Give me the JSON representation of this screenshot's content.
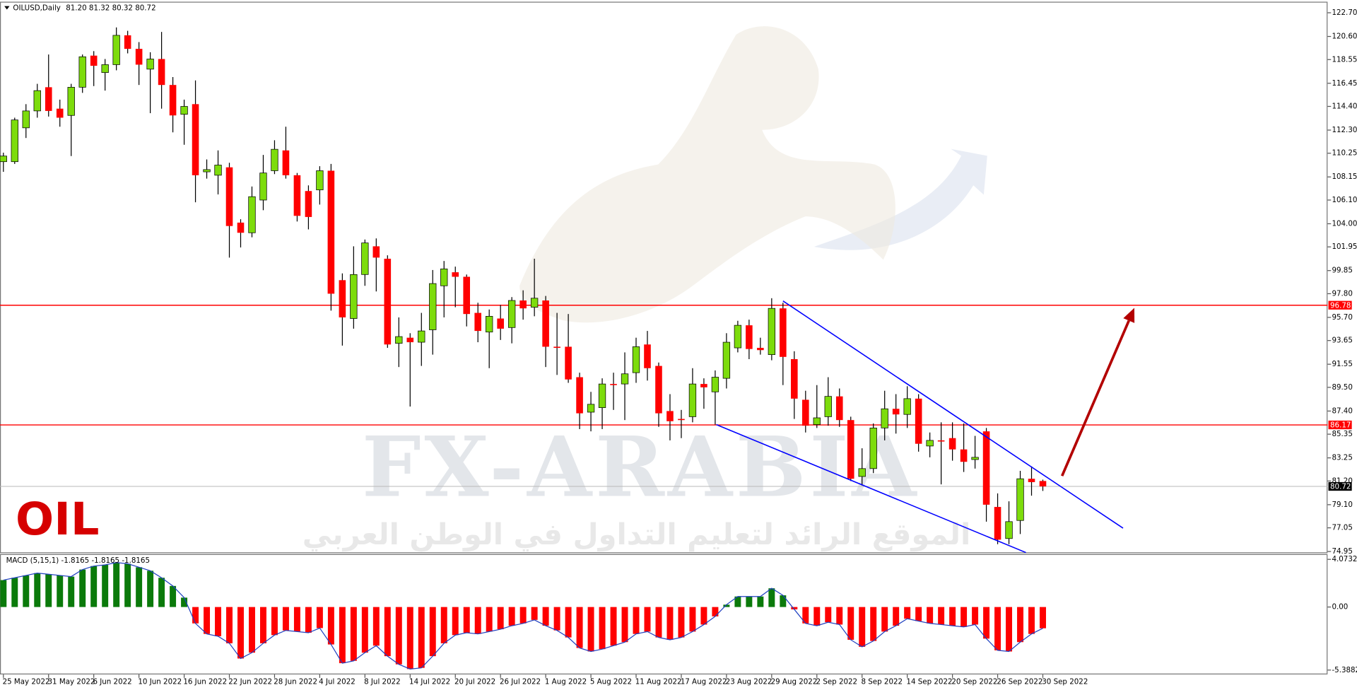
{
  "chart_data": [
    {
      "type": "candlestick",
      "title": "OILUSD,Daily",
      "ohlc_label": "81.20 81.32 80.32 80.72",
      "symbol_label": "OIL",
      "watermark": {
        "title": "FX-ARABIA",
        "subtitle": "الموقع الرائد لتعليم التداول في الوطن العربي"
      },
      "categories": [
        "25 May 2022",
        null,
        null,
        null,
        "31 May 2022",
        null,
        null,
        null,
        "6 Jun 2022",
        null,
        null,
        null,
        "10 Jun 2022",
        null,
        null,
        null,
        "16 Jun 2022",
        null,
        null,
        null,
        "22 Jun 2022",
        null,
        null,
        null,
        "28 Jun 2022",
        null,
        null,
        null,
        "4 Jul 2022",
        null,
        null,
        null,
        "8 Jul 2022",
        null,
        null,
        null,
        "14 Jul 2022",
        null,
        null,
        null,
        "20 Jul 2022",
        null,
        null,
        null,
        "26 Jul 2022",
        null,
        null,
        null,
        "1 Aug 2022",
        null,
        null,
        null,
        "5 Aug 2022",
        null,
        null,
        null,
        "11 Aug 2022",
        null,
        null,
        null,
        "17 Aug 2022",
        null,
        null,
        null,
        "23 Aug 2022",
        null,
        null,
        null,
        "29 Aug 2022",
        null,
        null,
        null,
        "2 Sep 2022",
        null,
        null,
        null,
        "8 Sep 2022",
        null,
        null,
        null,
        "14 Sep 2022",
        null,
        null,
        null,
        "20 Sep 2022",
        null,
        null,
        null,
        "26 Sep 2022",
        null,
        null,
        null,
        "30 Sep 2022"
      ],
      "open": [
        109.5,
        109.5,
        112.5,
        114.0,
        116.1,
        114.2,
        113.6,
        116.1,
        118.9,
        117.4,
        118.1,
        120.7,
        119.5,
        117.7,
        118.6,
        116.3,
        113.7,
        114.6,
        108.6,
        108.3,
        109.0,
        104.1,
        103.2,
        106.1,
        108.7,
        110.5,
        108.3,
        106.9,
        107.0,
        108.7,
        99.0,
        95.6,
        99.5,
        102.0,
        100.9,
        93.4,
        93.9,
        93.5,
        94.6,
        98.5,
        99.7,
        99.3,
        96.1,
        94.4,
        95.6,
        94.8,
        97.2,
        96.6,
        97.2,
        93.1,
        93.1,
        90.4,
        87.3,
        87.7,
        89.8,
        89.8,
        90.8,
        93.3,
        91.4,
        87.4,
        86.7,
        86.9,
        89.8,
        89.1,
        90.3,
        93.0,
        95.0,
        93.0,
        92.4,
        96.5,
        92.0,
        88.4,
        86.2,
        86.9,
        88.7,
        86.6,
        81.6,
        82.3,
        85.9,
        87.6,
        87.1,
        88.5,
        84.3,
        84.8,
        85.0,
        84.0,
        83.1,
        85.6,
        78.9,
        76.1,
        77.7,
        81.4,
        81.2
      ],
      "high": [
        110.3,
        113.4,
        114.6,
        116.4,
        119.0,
        115.0,
        116.4,
        119.0,
        119.3,
        118.6,
        121.4,
        121.1,
        120.1,
        119.2,
        121.0,
        117.0,
        115.0,
        116.7,
        109.7,
        110.5,
        109.4,
        104.4,
        107.3,
        110.1,
        111.4,
        112.6,
        108.5,
        107.4,
        109.1,
        109.3,
        99.6,
        102.0,
        102.6,
        102.7,
        101.2,
        95.7,
        94.3,
        96.1,
        99.9,
        100.7,
        100.2,
        99.5,
        97.0,
        96.4,
        96.8,
        97.5,
        98.1,
        100.9,
        97.6,
        96.1,
        96.0,
        90.8,
        89.1,
        90.3,
        90.8,
        92.6,
        93.9,
        94.5,
        91.7,
        88.9,
        87.5,
        91.2,
        90.3,
        91.0,
        94.3,
        95.4,
        95.5,
        93.9,
        97.4,
        97.0,
        92.7,
        89.2,
        89.7,
        90.4,
        89.4,
        86.9,
        84.1,
        86.3,
        89.2,
        88.9,
        89.6,
        88.9,
        85.5,
        86.4,
        86.4,
        86.3,
        85.2,
        85.9,
        80.1,
        79.4,
        82.1,
        82.5,
        81.32
      ],
      "low": [
        108.6,
        109.3,
        111.6,
        113.4,
        113.5,
        112.6,
        110.0,
        115.6,
        116.2,
        115.8,
        117.6,
        119.1,
        116.3,
        113.8,
        114.2,
        112.1,
        111.0,
        105.9,
        108.0,
        106.6,
        101.0,
        101.9,
        102.8,
        105.2,
        108.4,
        108.0,
        104.2,
        103.5,
        105.7,
        96.3,
        93.2,
        94.7,
        98.5,
        98.0,
        93.0,
        91.3,
        87.8,
        91.4,
        92.4,
        95.7,
        96.6,
        94.9,
        93.5,
        91.2,
        93.7,
        93.4,
        95.5,
        95.8,
        91.3,
        90.6,
        89.9,
        85.8,
        85.6,
        85.8,
        87.5,
        86.6,
        89.9,
        90.1,
        86.0,
        84.8,
        85.0,
        86.4,
        87.6,
        86.2,
        89.4,
        92.6,
        92.0,
        92.4,
        91.9,
        89.7,
        86.7,
        85.5,
        85.9,
        86.1,
        86.0,
        81.2,
        80.8,
        81.9,
        84.8,
        85.4,
        85.9,
        83.8,
        83.3,
        80.9,
        83.0,
        82.0,
        82.3,
        77.6,
        75.6,
        75.6,
        76.5,
        79.9,
        80.32
      ],
      "close": [
        110.0,
        113.2,
        114.0,
        115.8,
        114.0,
        113.4,
        116.1,
        118.8,
        118.0,
        118.1,
        120.7,
        119.5,
        118.1,
        118.6,
        116.3,
        113.6,
        114.4,
        108.3,
        108.8,
        109.2,
        103.8,
        103.2,
        106.4,
        108.5,
        110.6,
        108.3,
        104.7,
        104.6,
        108.7,
        97.8,
        95.7,
        99.5,
        102.3,
        101.0,
        93.3,
        94.0,
        93.5,
        94.5,
        98.7,
        100.0,
        99.3,
        96.0,
        94.5,
        95.8,
        94.7,
        97.2,
        96.5,
        97.4,
        93.1,
        93.0,
        90.2,
        87.2,
        88.0,
        89.8,
        89.7,
        90.7,
        93.1,
        91.2,
        87.2,
        86.5,
        86.6,
        89.8,
        89.5,
        90.4,
        93.5,
        95.0,
        92.9,
        92.8,
        96.5,
        92.2,
        88.5,
        86.1,
        86.8,
        88.7,
        86.6,
        81.4,
        82.3,
        85.9,
        87.6,
        87.1,
        88.5,
        84.5,
        84.8,
        84.7,
        84.0,
        82.9,
        83.3,
        79.1,
        76.0,
        77.6,
        81.4,
        81.1,
        80.72
      ],
      "up_color": "#7ddc0c",
      "down_color": "#ff0000",
      "xlim": [
        -0.3,
        117.2
      ],
      "ylim": [
        74.8,
        123.6
      ],
      "yticks": [
        {
          "value": 122.7,
          "label": "122.70"
        },
        {
          "value": 120.6,
          "label": "120.60"
        },
        118.55,
        116.45,
        {
          "value": 114.4,
          "label": "114.40"
        },
        {
          "value": 112.3,
          "label": "112.30"
        },
        110.25,
        108.15,
        {
          "value": 106.1,
          "label": "106.10"
        },
        {
          "value": 104,
          "label": "104.00"
        },
        101.95,
        99.85,
        {
          "value": 97.8,
          "label": "97.80"
        },
        {
          "value": 95.7,
          "label": "95.70"
        },
        93.65,
        91.55,
        {
          "value": 89.5,
          "label": "89.50"
        },
        {
          "value": 87.4,
          "label": "87.40"
        },
        85.35,
        83.25,
        {
          "value": 81.2,
          "label": "81.20"
        },
        {
          "value": 79.1,
          "label": "79.10"
        },
        77.05,
        74.95
      ],
      "hlines": [
        {
          "value": 96.78,
          "label": "96.78",
          "color": "#ff0000"
        },
        {
          "value": 86.17,
          "label": "86.17",
          "color": "#ff0000"
        }
      ],
      "current_price": {
        "value": 80.72,
        "label": "80.72"
      },
      "trendlines": [
        {
          "x": [
            69.0,
            99.1
          ],
          "y": [
            97.16,
            77.02
          ],
          "color": "#0000ff"
        },
        {
          "x": [
            63.1,
            90.5
          ],
          "y": [
            86.2,
            74.86
          ],
          "color": "#0000ff"
        }
      ],
      "arrow": {
        "x": [
          93.7,
          100.1
        ],
        "y": [
          81.65,
          96.54
        ],
        "color": "#b30000"
      }
    },
    {
      "type": "macd",
      "title": "MACD (5,15,1) -1.8165 -1.8165 -1.8165",
      "values": [
        2.3,
        2.5,
        2.7,
        2.9,
        2.8,
        2.7,
        2.6,
        3.2,
        3.5,
        3.6,
        3.8,
        3.7,
        3.4,
        3.1,
        2.5,
        1.8,
        0.8,
        -1.4,
        -2.3,
        -2.5,
        -3.1,
        -4.4,
        -3.9,
        -3.1,
        -2.4,
        -2.0,
        -2.1,
        -2.2,
        -1.8,
        -3.2,
        -4.8,
        -4.6,
        -3.9,
        -3.3,
        -4.2,
        -4.9,
        -5.3,
        -5.2,
        -4.2,
        -3.1,
        -2.4,
        -2.2,
        -2.3,
        -2.1,
        -1.9,
        -1.6,
        -1.4,
        -1.1,
        -1.6,
        -2.0,
        -2.6,
        -3.5,
        -3.8,
        -3.6,
        -3.3,
        -3.0,
        -2.3,
        -2.1,
        -2.6,
        -2.8,
        -2.6,
        -2.1,
        -1.5,
        -0.8,
        0.2,
        0.9,
        0.9,
        0.9,
        1.6,
        1.0,
        -0.2,
        -1.4,
        -1.6,
        -1.3,
        -1.5,
        -2.8,
        -3.4,
        -2.9,
        -2.1,
        -1.6,
        -1.0,
        -1.2,
        -1.4,
        -1.5,
        -1.6,
        -1.7,
        -1.5,
        -2.7,
        -3.7,
        -3.8,
        -3.0,
        -2.3,
        -1.8165
      ],
      "positive_color": "#0b7a0b",
      "negative_color": "#ff0000",
      "line_color": "#2040c0",
      "ylim": [
        -5.76,
        4.45
      ],
      "yticks": [
        4.0732,
        {
          "value": 0,
          "label": "0.00"
        },
        -5.3882
      ]
    }
  ]
}
